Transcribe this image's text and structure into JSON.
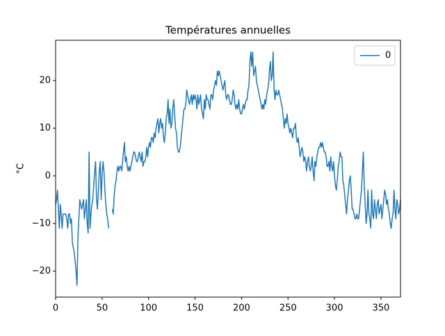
{
  "chart_data": {
    "type": "line",
    "title": "Températures annuelles",
    "y_label": "°C",
    "x": [
      0,
      1,
      2,
      3,
      4,
      5,
      6,
      7,
      8,
      9,
      10,
      11,
      12,
      13,
      14,
      15,
      16,
      17,
      18,
      19,
      20,
      21,
      22,
      23,
      24,
      25,
      26,
      27,
      28,
      29,
      30,
      31,
      32,
      33,
      34,
      35,
      36,
      37,
      38,
      39,
      40,
      41,
      42,
      43,
      44,
      45,
      46,
      47,
      48,
      49,
      50,
      51,
      52,
      53,
      54,
      55,
      56,
      57,
      58,
      59,
      60,
      61,
      62,
      63,
      64,
      65,
      66,
      67,
      68,
      69,
      70,
      71,
      72,
      73,
      74,
      75,
      76,
      77,
      78,
      79,
      80,
      81,
      82,
      83,
      84,
      85,
      86,
      87,
      88,
      89,
      90,
      91,
      92,
      93,
      94,
      95,
      96,
      97,
      98,
      99,
      100,
      101,
      102,
      103,
      104,
      105,
      106,
      107,
      108,
      109,
      110,
      111,
      112,
      113,
      114,
      115,
      116,
      117,
      118,
      119,
      120,
      121,
      122,
      123,
      124,
      125,
      126,
      127,
      128,
      129,
      130,
      131,
      132,
      133,
      134,
      135,
      136,
      137,
      138,
      139,
      140,
      141,
      142,
      143,
      144,
      145,
      146,
      147,
      148,
      149,
      150,
      151,
      152,
      153,
      154,
      155,
      156,
      157,
      158,
      159,
      160,
      161,
      162,
      163,
      164,
      165,
      166,
      167,
      168,
      169,
      170,
      171,
      172,
      173,
      174,
      175,
      176,
      177,
      178,
      179,
      180,
      181,
      182,
      183,
      184,
      185,
      186,
      187,
      188,
      189,
      190,
      191,
      192,
      193,
      194,
      195,
      196,
      197,
      198,
      199,
      200,
      201,
      202,
      203,
      204,
      205,
      206,
      207,
      208,
      209,
      210,
      211,
      212,
      213,
      214,
      215,
      216,
      217,
      218,
      219,
      220,
      221,
      222,
      223,
      224,
      225,
      226,
      227,
      228,
      229,
      230,
      231,
      232,
      233,
      234,
      235,
      236,
      237,
      238,
      239,
      240,
      241,
      242,
      243,
      244,
      245,
      246,
      247,
      248,
      249,
      250,
      251,
      252,
      253,
      254,
      255,
      256,
      257,
      258,
      259,
      260,
      261,
      262,
      263,
      264,
      265,
      266,
      267,
      268,
      269,
      270,
      271,
      272,
      273,
      274,
      275,
      276,
      277,
      278,
      279,
      280,
      281,
      282,
      283,
      284,
      285,
      286,
      287,
      288,
      289,
      290,
      291,
      292,
      293,
      294,
      295,
      296,
      297,
      298,
      299,
      300,
      301,
      302,
      303,
      304,
      305,
      306,
      307,
      308,
      309,
      310,
      311,
      312,
      313,
      314,
      315,
      316,
      317,
      318,
      319,
      320,
      321,
      322,
      323,
      324,
      325,
      326,
      327,
      328,
      329,
      330,
      331,
      332,
      333,
      334,
      335,
      336,
      337,
      338,
      339,
      340,
      341,
      342,
      343,
      344,
      345,
      346,
      347,
      348,
      349,
      350,
      351,
      352,
      353,
      354,
      355,
      356,
      357,
      358,
      359,
      360,
      361,
      362,
      363,
      364,
      365,
      366,
      367,
      368,
      369,
      370,
      371
    ],
    "series": [
      {
        "name": "0",
        "color": "#1f77b4",
        "values": [
          -6,
          -5,
          -3,
          -7,
          -11,
          -6,
          -8,
          -11,
          -8,
          -8,
          -8,
          -8,
          -9,
          -11,
          -8,
          -8,
          -10,
          -9,
          -14,
          -15,
          -16,
          -18,
          -20,
          -23,
          -13,
          -9,
          -5,
          -6,
          -7,
          -6,
          -5,
          -9,
          -7,
          -5,
          -10,
          -12,
          5,
          -11,
          -8,
          -6,
          -5,
          -2,
          1,
          3,
          -5,
          -7,
          -3,
          1,
          3,
          -5,
          0,
          3,
          1,
          -3,
          -6,
          -8,
          -9,
          -11,
          null,
          null,
          null,
          -7,
          -8,
          -4,
          -2,
          -1,
          1,
          2,
          1,
          2,
          2,
          1,
          3,
          5,
          7,
          3,
          4,
          2,
          1,
          2,
          1,
          2,
          3,
          4,
          5,
          5,
          4,
          3,
          3,
          4,
          5,
          4,
          3,
          5,
          2,
          3,
          3,
          4,
          6,
          4,
          6,
          7,
          6,
          8,
          8,
          7,
          9,
          8,
          10,
          11,
          12,
          9,
          11,
          12,
          10,
          11,
          8,
          7,
          9,
          12,
          13,
          16,
          11,
          14,
          10,
          11,
          14,
          16,
          13,
          10,
          9,
          6,
          5,
          5,
          6,
          8,
          10,
          12,
          14,
          14,
          15,
          18,
          17,
          16,
          15,
          16,
          17,
          15,
          17,
          16,
          17,
          16,
          14,
          17,
          15,
          16,
          17,
          14,
          13,
          12,
          16,
          14,
          17,
          16,
          16,
          15,
          14,
          17,
          17,
          16,
          18,
          19,
          20,
          19,
          22,
          21,
          22,
          21,
          20,
          19,
          18,
          19,
          20,
          17,
          16,
          17,
          17,
          16,
          15,
          15,
          16,
          18,
          17,
          15,
          14,
          15,
          14,
          16,
          14,
          13,
          13,
          14,
          15,
          14,
          15,
          16,
          16,
          18,
          19,
          24,
          26,
          23,
          26,
          21,
          22,
          23,
          20,
          19,
          18,
          17,
          16,
          15,
          14,
          15,
          14,
          16,
          15,
          17,
          18,
          19,
          22,
          24,
          20,
          21,
          26,
          18,
          16,
          18,
          17,
          17,
          18,
          17,
          16,
          15,
          14,
          12,
          10,
          12,
          11,
          13,
          11,
          10,
          9,
          10,
          9,
          8,
          10,
          10,
          11,
          8,
          7,
          8,
          6,
          4,
          5,
          6,
          5,
          3,
          4,
          3,
          1,
          3,
          4,
          2,
          1,
          2,
          4,
          1,
          -1,
          3,
          2,
          4,
          5,
          6,
          6,
          7,
          6,
          7,
          6,
          5,
          5,
          4,
          2,
          2,
          3,
          1,
          4,
          2,
          1,
          3,
          0,
          -2,
          -3,
          -1,
          2,
          3,
          5,
          4,
          4,
          -1,
          -2,
          -4,
          -6,
          -8,
          -5,
          -3,
          -1,
          0,
          -3,
          -7,
          -7,
          -8,
          -9,
          -9,
          -8,
          -9,
          -9,
          -7,
          -5,
          -3,
          1,
          5,
          -2,
          -6,
          -10,
          -8,
          -3,
          -8,
          -9,
          -11,
          -3,
          -8,
          -9,
          -5,
          -7,
          -9,
          -6,
          -5,
          -8,
          -7,
          -6,
          -9,
          -7,
          -5,
          -3,
          -4,
          -6,
          -5,
          -7,
          -8,
          -10,
          -11,
          -9,
          -8,
          -3,
          -7,
          -9,
          -5,
          -6,
          -8,
          -7,
          -5
        ]
      }
    ],
    "xlim": [
      0,
      371
    ],
    "ylim": [
      -25.45,
      28.45
    ],
    "xticks": [
      0,
      50,
      100,
      150,
      200,
      250,
      300,
      350
    ],
    "yticks": [
      {
        "value": -20,
        "label": "−20"
      },
      {
        "value": -10,
        "label": "−10"
      },
      0,
      10,
      20
    ],
    "grid": false,
    "legend": "upper right"
  }
}
